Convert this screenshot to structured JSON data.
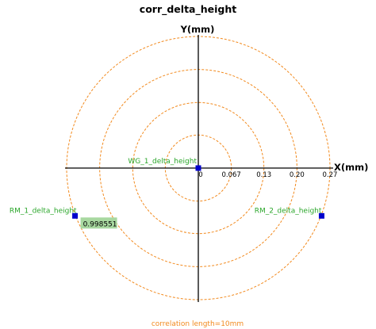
{
  "chart_data": {
    "type": "scatter",
    "coordinate_system": "polar-grid",
    "title": "corr_delta_height",
    "xlabel": "X(mm)",
    "ylabel": "Y(mm)",
    "radial_ticks": [
      "0",
      "0.067",
      "0.13",
      "0.20",
      "0.27"
    ],
    "radial_tick_values": [
      0,
      0.067,
      0.133,
      0.2,
      0.267
    ],
    "xlim": [
      -0.267,
      0.267
    ],
    "ylim": [
      -0.267,
      0.267
    ],
    "grid": true,
    "colors": {
      "axes": "#000000",
      "grid_circles": "#f28a1e",
      "points": "#0000cc",
      "point_labels": "#2aa62a",
      "value_box": "#a8d8a0"
    },
    "points": [
      {
        "name": "WG_1_delta_height",
        "x": 0.0,
        "y": 0.0
      },
      {
        "name": "RM_1_delta_height",
        "x": -0.25,
        "y": -0.097
      },
      {
        "name": "RM_2_delta_height",
        "x": 0.25,
        "y": -0.097
      }
    ],
    "annotations": [
      {
        "text": "0.998551",
        "attached_to": "RM_1_delta_height"
      }
    ],
    "footnote": "correlation length=10mm"
  }
}
